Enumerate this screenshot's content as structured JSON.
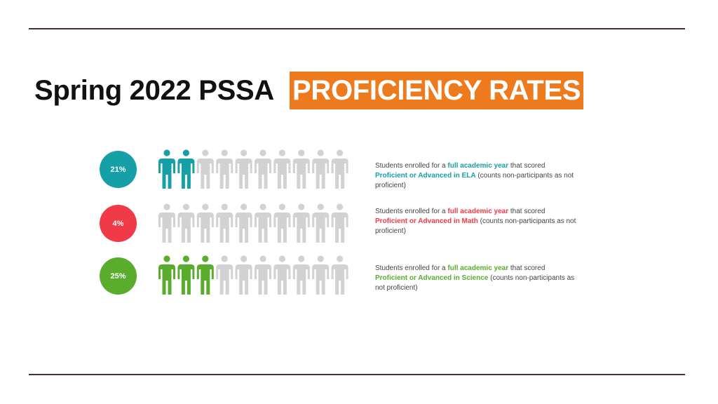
{
  "slide": {
    "title_main": "Spring 2022 PSSA",
    "title_badge": "PROFICIENCY RATES",
    "badge_color": "#ee7a1e"
  },
  "chart_data": {
    "type": "pictograph",
    "title": "Spring 2022 PSSA PROFICIENCY RATES",
    "icons_per_row": 10,
    "inactive_color": "#d2d2d2",
    "series": [
      {
        "name": "ELA",
        "percent_label": "21%",
        "value": 21,
        "highlighted_icons": 2,
        "color": "#15a0a8",
        "caption": {
          "pre": "Students enrolled for a ",
          "hl1": "full academic year",
          "mid": " that scored ",
          "hl2": "Proficient or Advanced in ELA",
          "post": " (counts non-participants as not proficient)"
        }
      },
      {
        "name": "Math",
        "percent_label": "4%",
        "value": 4,
        "highlighted_icons": 0,
        "color": "#f03a48",
        "caption": {
          "pre": "Students enrolled for a ",
          "hl1": "full academic year",
          "mid": " that scored ",
          "hl2": "Proficient or Advanced in Math",
          "post": " (counts non-participants as not proficient)"
        }
      },
      {
        "name": "Science",
        "percent_label": "25%",
        "value": 25,
        "highlighted_icons": 3,
        "color": "#5aac2c",
        "caption": {
          "pre": "Students enrolled for a ",
          "hl1": "full academic year",
          "mid": " that scored ",
          "hl2": "Proficient or Advanced in Science",
          "post": " (counts non-participants as not proficient)"
        }
      }
    ]
  }
}
